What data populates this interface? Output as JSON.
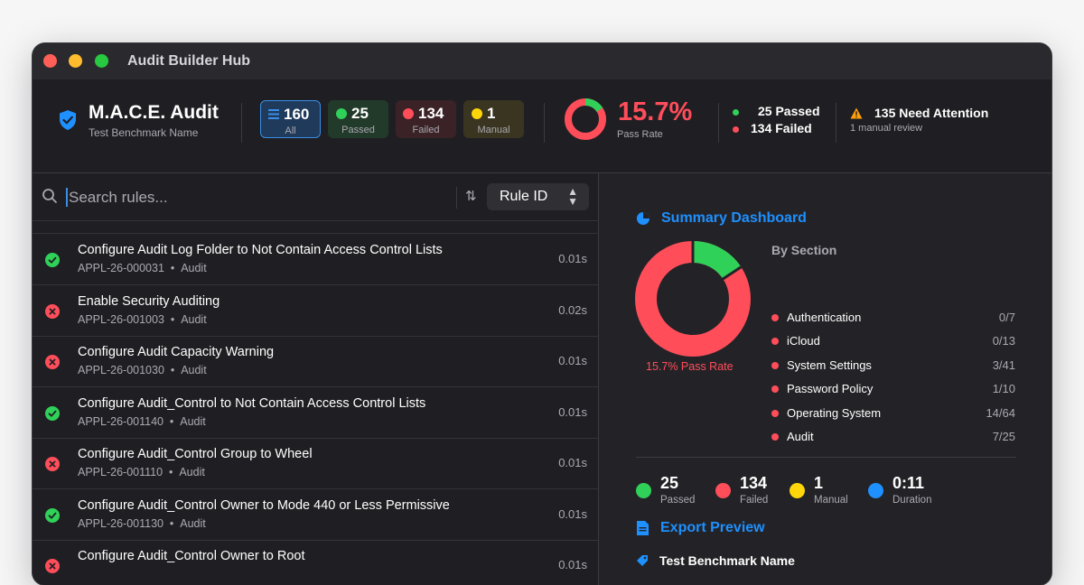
{
  "window": {
    "title": "Audit Builder Hub"
  },
  "header": {
    "title": "M.A.C.E. Audit",
    "subtitle": "Test Benchmark Name",
    "stats": {
      "all": {
        "value": "160",
        "label": "All"
      },
      "passed": {
        "value": "25",
        "label": "Passed"
      },
      "failed": {
        "value": "134",
        "label": "Failed"
      },
      "manual": {
        "value": "1",
        "label": "Manual"
      }
    },
    "pass_rate": {
      "value": "15.7%",
      "label": "Pass Rate",
      "fraction": 0.157
    },
    "legend": {
      "passed": "25 Passed",
      "failed": "134 Failed"
    },
    "attention": {
      "title": "135 Need Attention",
      "sub": "1 manual review"
    }
  },
  "search": {
    "placeholder": "Search rules...",
    "sort_value": "Rule ID"
  },
  "rules": [
    {
      "status": "pass",
      "title": "Configure Audit Log Folder to Not Contain Access Control Lists",
      "id": "APPL-26-000031",
      "section": "Audit",
      "time": "0.01s"
    },
    {
      "status": "fail",
      "title": "Enable Security Auditing",
      "id": "APPL-26-001003",
      "section": "Audit",
      "time": "0.02s"
    },
    {
      "status": "fail",
      "title": "Configure Audit Capacity Warning",
      "id": "APPL-26-001030",
      "section": "Audit",
      "time": "0.01s"
    },
    {
      "status": "pass",
      "title": "Configure Audit_Control to Not Contain Access Control Lists",
      "id": "APPL-26-001140",
      "section": "Audit",
      "time": "0.01s"
    },
    {
      "status": "fail",
      "title": "Configure Audit_Control Group to Wheel",
      "id": "APPL-26-001110",
      "section": "Audit",
      "time": "0.01s"
    },
    {
      "status": "pass",
      "title": "Configure Audit_Control Owner to Mode 440 or Less Permissive",
      "id": "APPL-26-001130",
      "section": "Audit",
      "time": "0.01s"
    },
    {
      "status": "fail",
      "title": "Configure Audit_Control Owner to Root",
      "id": "",
      "section": "",
      "time": "0.01s"
    }
  ],
  "dashboard": {
    "title": "Summary Dashboard",
    "donut_label": "15.7% Pass Rate",
    "by_section_label": "By Section",
    "sections": [
      {
        "name": "Authentication",
        "value": "0/7"
      },
      {
        "name": "iCloud",
        "value": "0/13"
      },
      {
        "name": "System Settings",
        "value": "3/41"
      },
      {
        "name": "Password Policy",
        "value": "1/10"
      },
      {
        "name": "Operating System",
        "value": "14/64"
      },
      {
        "name": "Audit",
        "value": "7/25"
      }
    ],
    "bottom_stats": {
      "passed": {
        "value": "25",
        "label": "Passed"
      },
      "failed": {
        "value": "134",
        "label": "Failed"
      },
      "manual": {
        "value": "1",
        "label": "Manual"
      },
      "duration": {
        "value": "0:11",
        "label": "Duration"
      }
    }
  },
  "export": {
    "title": "Export Preview",
    "benchmark": "Test Benchmark Name"
  },
  "colors": {
    "pass": "#30d158",
    "fail": "#ff4d5a",
    "manual": "#ffd60a",
    "accent": "#1e90ff"
  }
}
